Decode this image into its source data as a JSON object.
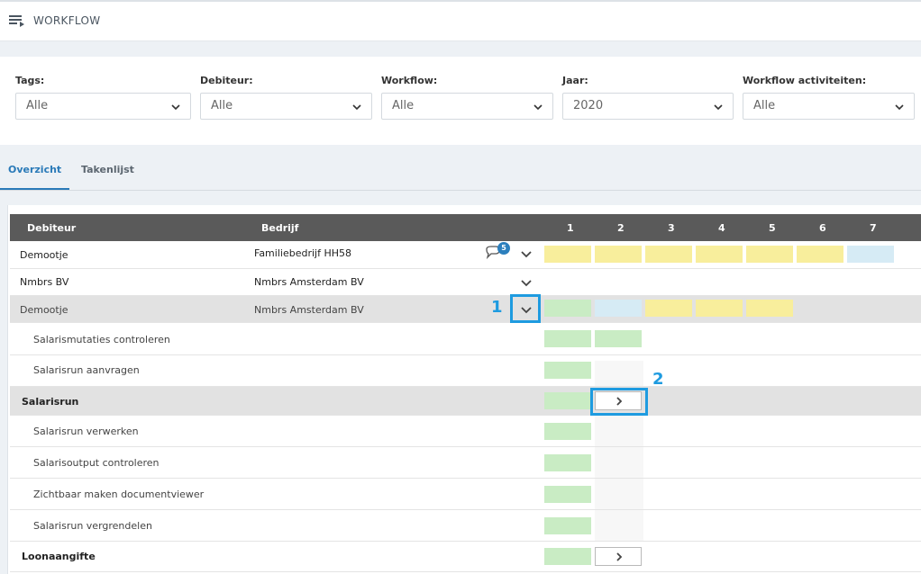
{
  "header": {
    "title": "WORKFLOW",
    "menu_icon": "menu-icon"
  },
  "filters": [
    {
      "label": "Tags:",
      "value": "Alle"
    },
    {
      "label": "Debiteur:",
      "value": "Alle"
    },
    {
      "label": "Workflow:",
      "value": "Alle"
    },
    {
      "label": "Jaar:",
      "value": "2020"
    },
    {
      "label": "Workflow activiteiten:",
      "value": "Alle"
    }
  ],
  "tabs": [
    {
      "label": "Overzicht",
      "active": true
    },
    {
      "label": "Takenlijst",
      "active": false
    }
  ],
  "table": {
    "headers": {
      "debiteur": "Debiteur",
      "bedrijf": "Bedrijf",
      "periods": [
        "1",
        "2",
        "3",
        "4",
        "5",
        "6",
        "7"
      ]
    },
    "rows": [
      {
        "debiteur": "Demootje",
        "bedrijf": "Familiebedrijf HH58",
        "comment_count": "5",
        "cells": [
          "yellow",
          "yellow",
          "yellow",
          "yellow",
          "yellow",
          "yellow",
          "blue"
        ]
      },
      {
        "debiteur": "Nmbrs BV",
        "bedrijf": "Nmbrs Amsterdam BV",
        "cells": []
      },
      {
        "debiteur": "Demootje",
        "bedrijf": "Nmbrs Amsterdam BV",
        "cells": [
          "green",
          "blue",
          "yellow",
          "yellow",
          "yellow"
        ]
      }
    ],
    "subrows": [
      {
        "label": "Salarismutaties controleren",
        "type": "sub"
      },
      {
        "label": "Salarisrun aanvragen",
        "type": "sub"
      },
      {
        "label": "Salarisrun",
        "type": "group"
      },
      {
        "label": "Salarisrun verwerken",
        "type": "sub"
      },
      {
        "label": "Salarisoutput controleren",
        "type": "sub"
      },
      {
        "label": "Zichtbaar maken documentviewer",
        "type": "sub"
      },
      {
        "label": "Salarisrun vergrendelen",
        "type": "sub"
      },
      {
        "label": "Loonaangifte",
        "type": "group"
      }
    ]
  },
  "annotations": [
    "1",
    "2"
  ],
  "colors": {
    "green": "#c9ecc4",
    "yellow": "#f8ee9c",
    "blue": "#d6ebf5",
    "header": "#5a5a5a",
    "accent": "#2a7ab8",
    "highlight": "#1e9be0"
  }
}
